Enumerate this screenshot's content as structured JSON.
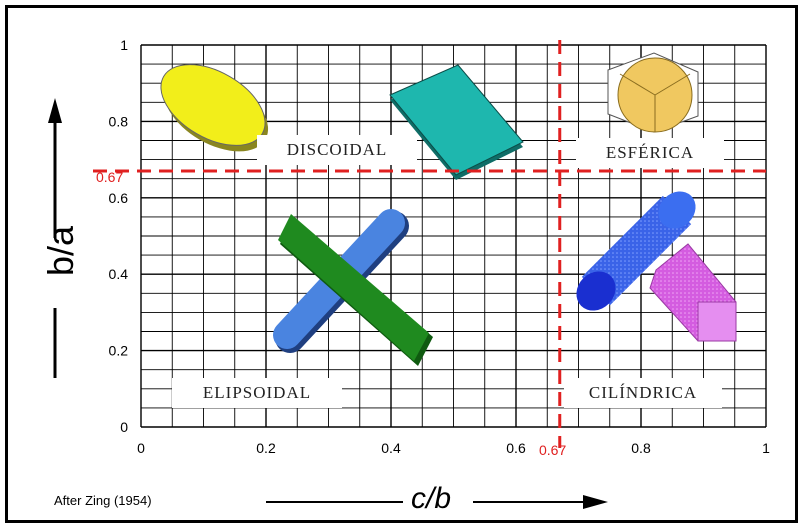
{
  "credit": "After Zing (1954)",
  "xaxis_title": "c/b",
  "yaxis_title": "b/a",
  "x_ticks": [
    "0",
    "0.2",
    "0.4",
    "0.6",
    "0.8",
    "1"
  ],
  "y_ticks": [
    "0",
    "0.2",
    "0.4",
    "0.6",
    "0.8",
    "1"
  ],
  "threshold": {
    "value": 0.67,
    "label": "0.67",
    "color": "#e02020"
  },
  "regions": {
    "discoidal": "DISCOIDAL",
    "esferica": "ESFÉRICA",
    "elipsoidal": "ELIPSOIDAL",
    "cilindrica": "CILÍNDRICA"
  },
  "colors": {
    "ellipsoid": "#f2ee1a",
    "slab": "#1eb7ae",
    "sphere": "#f0c860",
    "rod_green": "#1f8a1f",
    "rod_blue": "#4a84e0",
    "cylinder": "#2a5be0",
    "prism": "#d860e0"
  }
}
